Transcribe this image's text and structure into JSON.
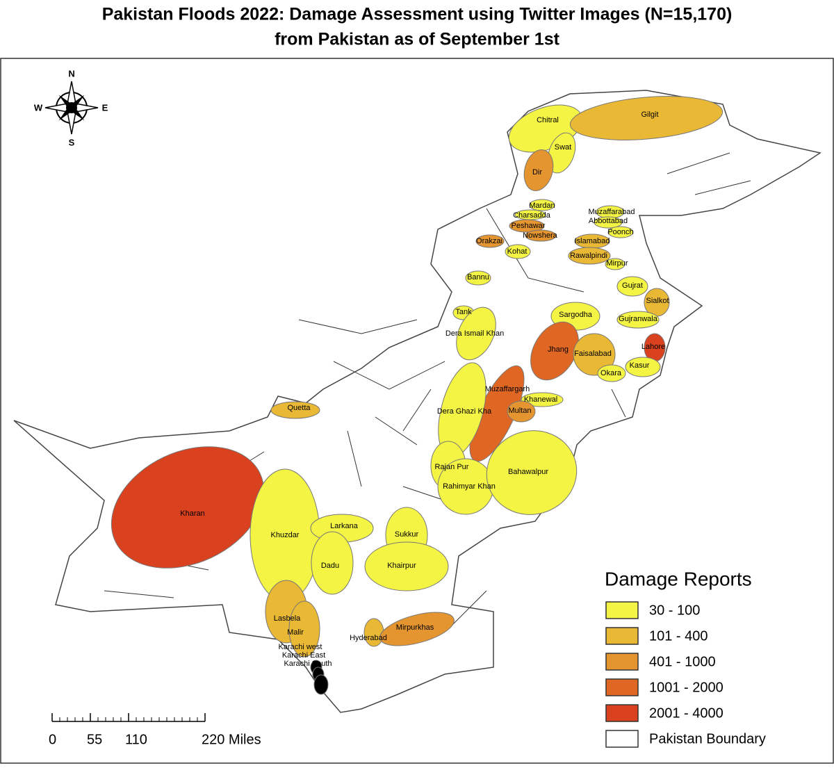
{
  "title": [
    "Pakistan Floods 2022: Damage Assessment using Twitter Images (N=15,170)",
    "from Pakistan as of September 1st"
  ],
  "compass": {
    "n": "N",
    "e": "E",
    "s": "S",
    "w": "W"
  },
  "legend": {
    "title": "Damage Reports",
    "classes": [
      {
        "label": "30 - 100",
        "color": "#f4f444"
      },
      {
        "label": "101 - 400",
        "color": "#e9b834"
      },
      {
        "label": "401 - 1000",
        "color": "#e4952f"
      },
      {
        "label": "1001 - 2000",
        "color": "#e06723"
      },
      {
        "label": "2001 - 4000",
        "color": "#d9411f"
      }
    ],
    "boundary": {
      "label": "Pakistan Boundary",
      "color": "#ffffff"
    }
  },
  "districts": [
    {
      "name": "Chitral",
      "class": 0
    },
    {
      "name": "Gilgit",
      "class": 1
    },
    {
      "name": "Swat",
      "class": 0
    },
    {
      "name": "Dir",
      "class": 2
    },
    {
      "name": "Mardan",
      "class": 0
    },
    {
      "name": "Charsadda",
      "class": 0
    },
    {
      "name": "Peshawar",
      "class": 2
    },
    {
      "name": "Nowshera",
      "class": 2
    },
    {
      "name": "Orakzai",
      "class": 2
    },
    {
      "name": "Kohat",
      "class": 0
    },
    {
      "name": "Muzaffarabad",
      "class": 0
    },
    {
      "name": "Abbottabad",
      "class": 0
    },
    {
      "name": "Poonch",
      "class": 0
    },
    {
      "name": "Islamabad",
      "class": 1
    },
    {
      "name": "Rawalpindi",
      "class": 1
    },
    {
      "name": "Mirpur",
      "class": 0
    },
    {
      "name": "Bannu",
      "class": 0
    },
    {
      "name": "Gujrat",
      "class": 0
    },
    {
      "name": "Sialkot",
      "class": 1
    },
    {
      "name": "Tank",
      "class": 0
    },
    {
      "name": "Dera Ismail Khan",
      "class": 0
    },
    {
      "name": "Sargodha",
      "class": 0
    },
    {
      "name": "Gujranwala",
      "class": 0
    },
    {
      "name": "Jhang",
      "class": 3
    },
    {
      "name": "Faisalabad",
      "class": 1
    },
    {
      "name": "Lahore",
      "class": 4
    },
    {
      "name": "Kasur",
      "class": 0
    },
    {
      "name": "Okara",
      "class": 0
    },
    {
      "name": "Muzaffargarh",
      "class": 3
    },
    {
      "name": "Khanewal",
      "class": 0
    },
    {
      "name": "Multan",
      "class": 2
    },
    {
      "name": "Dera Ghazi Kha",
      "class": 0
    },
    {
      "name": "Quetta",
      "class": 1
    },
    {
      "name": "Rajan Pur",
      "class": 0
    },
    {
      "name": "Rahimyar Khan",
      "class": 0
    },
    {
      "name": "Bahawalpur",
      "class": 0
    },
    {
      "name": "Kharan",
      "class": 4
    },
    {
      "name": "Khuzdar",
      "class": 0
    },
    {
      "name": "Larkana",
      "class": 0
    },
    {
      "name": "Sukkur",
      "class": 0
    },
    {
      "name": "Dadu",
      "class": 0
    },
    {
      "name": "Khairpur",
      "class": 0
    },
    {
      "name": "Lasbela",
      "class": 1
    },
    {
      "name": "Malir",
      "class": 1
    },
    {
      "name": "Hyderabad",
      "class": 1
    },
    {
      "name": "Mirpurkhas",
      "class": 2
    },
    {
      "name": "Karachi west"
    },
    {
      "name": "Karachi East"
    },
    {
      "name": "Karachi South"
    }
  ],
  "scale_bar": {
    "ticks": [
      0,
      55,
      110,
      {
        "value": 220,
        "label": "220 Miles"
      }
    ]
  }
}
